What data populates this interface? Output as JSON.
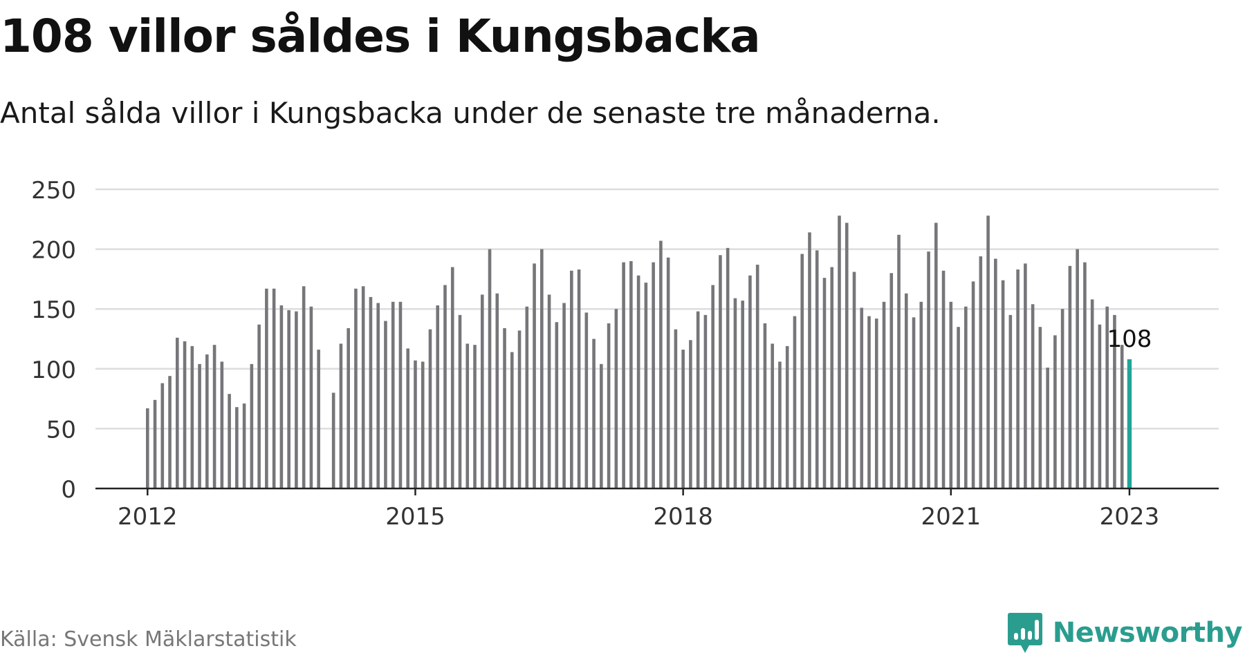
{
  "title": "108 villor såldes i Kungsbacka",
  "subtitle": "Antal sålda villor i Kungsbacka under de senaste tre månaderna.",
  "source": "Källa: Svensk Mäklarstatistik",
  "brand": "Newsworthy",
  "colors": {
    "bar": "#76767a",
    "highlight": "#22a499",
    "grid": "#dddddd",
    "axis": "#222222",
    "brand": "#2a9d8f"
  },
  "chart_data": {
    "type": "bar",
    "title": "108 villor såldes i Kungsbacka",
    "subtitle": "Antal sålda villor i Kungsbacka under de senaste tre månaderna.",
    "xlabel": "",
    "ylabel": "",
    "ylim": [
      0,
      250
    ],
    "yticks": [
      0,
      50,
      100,
      150,
      200,
      250
    ],
    "xlim": [
      "2011-06",
      "2024-01"
    ],
    "xticks": [
      {
        "label": "2012",
        "x": "2012-01"
      },
      {
        "label": "2015",
        "x": "2015-01"
      },
      {
        "label": "2018",
        "x": "2018-01"
      },
      {
        "label": "2021",
        "x": "2021-01"
      },
      {
        "label": "2023",
        "x": "2023-01"
      }
    ],
    "grid": true,
    "legend": "none",
    "highlight": {
      "x": "2023-01",
      "value": 108,
      "label": "108"
    },
    "series": [
      {
        "x": [
          "2012-01",
          "2012-02",
          "2012-03",
          "2012-04",
          "2012-05",
          "2012-06",
          "2012-07",
          "2012-08",
          "2012-09",
          "2012-10",
          "2012-11",
          "2012-12",
          "2013-01",
          "2013-02",
          "2013-03",
          "2013-04",
          "2013-05",
          "2013-06",
          "2013-07",
          "2013-08",
          "2013-09",
          "2013-10",
          "2013-11",
          "2013-12",
          "2014-01",
          "2014-02",
          "2014-03",
          "2014-04",
          "2014-05",
          "2014-06",
          "2014-07",
          "2014-08",
          "2014-09",
          "2014-10",
          "2014-11",
          "2014-12",
          "2015-01",
          "2015-02",
          "2015-03",
          "2015-04",
          "2015-05",
          "2015-06",
          "2015-07",
          "2015-08",
          "2015-09",
          "2015-10",
          "2015-11",
          "2015-12",
          "2016-01",
          "2016-02",
          "2016-03",
          "2016-04",
          "2016-05",
          "2016-06",
          "2016-07",
          "2016-08",
          "2016-09",
          "2016-10",
          "2016-11",
          "2016-12",
          "2017-01",
          "2017-02",
          "2017-03",
          "2017-04",
          "2017-05",
          "2017-06",
          "2017-07",
          "2017-08",
          "2017-09",
          "2017-10",
          "2017-11",
          "2017-12",
          "2018-01",
          "2018-02",
          "2018-03",
          "2018-04",
          "2018-05",
          "2018-06",
          "2018-07",
          "2018-08",
          "2018-09",
          "2018-10",
          "2018-11",
          "2018-12",
          "2019-01",
          "2019-02",
          "2019-03",
          "2019-04",
          "2019-05",
          "2019-06",
          "2019-07",
          "2019-08",
          "2019-09",
          "2019-10",
          "2019-11",
          "2019-12",
          "2020-01",
          "2020-02",
          "2020-03",
          "2020-04",
          "2020-05",
          "2020-06",
          "2020-07",
          "2020-08",
          "2020-09",
          "2020-10",
          "2020-11",
          "2020-12",
          "2021-01",
          "2021-02",
          "2021-03",
          "2021-04",
          "2021-05",
          "2021-06",
          "2021-07",
          "2021-08",
          "2021-09",
          "2021-10",
          "2021-11",
          "2021-12",
          "2022-01",
          "2022-02",
          "2022-03",
          "2022-04",
          "2022-05",
          "2022-06",
          "2022-07",
          "2022-08",
          "2022-09",
          "2022-10",
          "2022-11",
          "2022-12",
          "2023-01"
        ],
        "values": [
          67,
          74,
          88,
          94,
          126,
          123,
          119,
          104,
          112,
          120,
          106,
          79,
          68,
          71,
          104,
          137,
          167,
          167,
          153,
          149,
          148,
          169,
          152,
          116,
          null,
          80,
          121,
          134,
          167,
          169,
          160,
          155,
          140,
          156,
          156,
          117,
          107,
          106,
          133,
          153,
          170,
          185,
          145,
          121,
          120,
          162,
          200,
          163,
          134,
          114,
          132,
          152,
          188,
          200,
          162,
          139,
          155,
          182,
          183,
          147,
          125,
          104,
          138,
          150,
          189,
          190,
          178,
          172,
          189,
          207,
          193,
          133,
          116,
          124,
          148,
          145,
          170,
          195,
          201,
          159,
          157,
          178,
          187,
          138,
          121,
          106,
          119,
          144,
          196,
          214,
          199,
          176,
          185,
          228,
          222,
          181,
          151,
          144,
          142,
          156,
          180,
          212,
          163,
          143,
          156,
          198,
          222,
          182,
          156,
          135,
          152,
          173,
          194,
          228,
          192,
          174,
          145,
          183,
          188,
          154,
          135,
          101,
          128,
          150,
          186,
          200,
          189,
          158,
          137,
          152,
          145,
          120,
          108
        ]
      }
    ]
  }
}
